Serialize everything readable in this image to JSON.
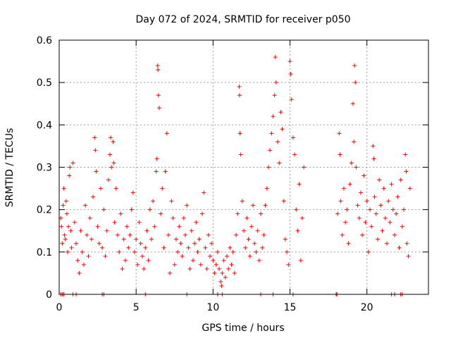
{
  "chart_data": {
    "type": "scatter",
    "title": "Day 072 of 2024, SRMTID for receiver p050",
    "xlabel": "GPS time / hours",
    "ylabel": "SRMTID / TECUs",
    "xlim": [
      0,
      24
    ],
    "ylim": [
      0,
      0.6
    ],
    "xticks": [
      0,
      5,
      10,
      15,
      20
    ],
    "xtick_labels": [
      "0",
      "5",
      "10",
      "15",
      "20"
    ],
    "yticks": [
      0,
      0.1,
      0.2,
      0.3,
      0.4,
      0.5,
      0.6
    ],
    "ytick_labels": [
      "0",
      "0.1",
      "0.2",
      "0.3",
      "0.4",
      "0.5",
      "0.6"
    ],
    "grid": true,
    "marker": "+",
    "color": "#ff0000",
    "series": [
      {
        "name": "SRMTID",
        "points": [
          [
            0.1,
            0.18
          ],
          [
            0.15,
            0.16
          ],
          [
            0.2,
            0.12
          ],
          [
            0.25,
            0.21
          ],
          [
            0.3,
            0.25
          ],
          [
            0.35,
            0.14
          ],
          [
            0.4,
            0.13
          ],
          [
            0.45,
            0.22
          ],
          [
            0.5,
            0.19
          ],
          [
            0.55,
            0.1
          ],
          [
            0.6,
            0.16
          ],
          [
            0.65,
            0.28
          ],
          [
            0.7,
            0.3
          ],
          [
            0.75,
            0.15
          ],
          [
            0.8,
            0.11
          ],
          [
            0.9,
            0.31
          ],
          [
            1.0,
            0.17
          ],
          [
            1.1,
            0.12
          ],
          [
            1.2,
            0.08
          ],
          [
            1.3,
            0.05
          ],
          [
            1.4,
            0.15
          ],
          [
            1.5,
            0.1
          ],
          [
            1.6,
            0.07
          ],
          [
            1.7,
            0.21
          ],
          [
            1.8,
            0.14
          ],
          [
            1.9,
            0.09
          ],
          [
            2.0,
            0.18
          ],
          [
            2.1,
            0.13
          ],
          [
            2.2,
            0.23
          ],
          [
            2.3,
            0.37
          ],
          [
            2.35,
            0.34
          ],
          [
            2.4,
            0.29
          ],
          [
            2.5,
            0.16
          ],
          [
            2.6,
            0.12
          ],
          [
            2.7,
            0.25
          ],
          [
            2.8,
            0.11
          ],
          [
            2.9,
            0.2
          ],
          [
            3.0,
            0.09
          ],
          [
            3.1,
            0.15
          ],
          [
            3.2,
            0.27
          ],
          [
            3.3,
            0.33
          ],
          [
            3.35,
            0.37
          ],
          [
            3.4,
            0.3
          ],
          [
            3.5,
            0.36
          ],
          [
            3.55,
            0.31
          ],
          [
            3.6,
            0.17
          ],
          [
            3.7,
            0.25
          ],
          [
            3.8,
            0.14
          ],
          [
            3.9,
            0.1
          ],
          [
            4.0,
            0.19
          ],
          [
            4.1,
            0.06
          ],
          [
            4.2,
            0.13
          ],
          [
            4.3,
            0.08
          ],
          [
            4.4,
            0.16
          ],
          [
            4.5,
            0.11
          ],
          [
            4.6,
            0.14
          ],
          [
            4.7,
            0.2
          ],
          [
            4.8,
            0.24
          ],
          [
            4.9,
            0.1
          ],
          [
            5.0,
            0.13
          ],
          [
            5.1,
            0.07
          ],
          [
            5.2,
            0.17
          ],
          [
            5.3,
            0.12
          ],
          [
            5.4,
            0.09
          ],
          [
            5.5,
            0.06
          ],
          [
            5.6,
            0.11
          ],
          [
            5.7,
            0.15
          ],
          [
            5.8,
            0.08
          ],
          [
            5.9,
            0.2
          ],
          [
            6.0,
            0.13
          ],
          [
            6.1,
            0.22
          ],
          [
            6.2,
            0.16
          ],
          [
            6.3,
            0.29
          ],
          [
            6.35,
            0.32
          ],
          [
            6.4,
            0.54
          ],
          [
            6.42,
            0.53
          ],
          [
            6.45,
            0.47
          ],
          [
            6.5,
            0.44
          ],
          [
            6.6,
            0.19
          ],
          [
            6.7,
            0.25
          ],
          [
            6.8,
            0.11
          ],
          [
            6.9,
            0.29
          ],
          [
            7.0,
            0.38
          ],
          [
            7.1,
            0.14
          ],
          [
            7.2,
            0.05
          ],
          [
            7.3,
            0.22
          ],
          [
            7.4,
            0.18
          ],
          [
            7.5,
            0.07
          ],
          [
            7.6,
            0.13
          ],
          [
            7.7,
            0.1
          ],
          [
            7.8,
            0.16
          ],
          [
            7.9,
            0.12
          ],
          [
            8.0,
            0.09
          ],
          [
            8.1,
            0.18
          ],
          [
            8.2,
            0.14
          ],
          [
            8.3,
            0.21
          ],
          [
            8.4,
            0.11
          ],
          [
            8.5,
            0.06
          ],
          [
            8.6,
            0.15
          ],
          [
            8.7,
            0.08
          ],
          [
            8.8,
            0.12
          ],
          [
            8.9,
            0.17
          ],
          [
            9.0,
            0.1
          ],
          [
            9.1,
            0.13
          ],
          [
            9.2,
            0.07
          ],
          [
            9.3,
            0.19
          ],
          [
            9.4,
            0.24
          ],
          [
            9.5,
            0.11
          ],
          [
            9.6,
            0.06
          ],
          [
            9.7,
            0.14
          ],
          [
            9.8,
            0.09
          ],
          [
            9.9,
            0.12
          ],
          [
            10.0,
            0.08
          ],
          [
            10.1,
            0.05
          ],
          [
            10.2,
            0.07
          ],
          [
            10.3,
            0.1
          ],
          [
            10.4,
            0.06
          ],
          [
            10.5,
            0.03
          ],
          [
            10.55,
            0.02
          ],
          [
            10.6,
            0.05
          ],
          [
            10.7,
            0.08
          ],
          [
            10.8,
            0.04
          ],
          [
            10.9,
            0.09
          ],
          [
            11.0,
            0.06
          ],
          [
            11.1,
            0.11
          ],
          [
            11.2,
            0.07
          ],
          [
            11.3,
            0.1
          ],
          [
            11.4,
            0.05
          ],
          [
            11.5,
            0.14
          ],
          [
            11.6,
            0.19
          ],
          [
            11.7,
            0.49
          ],
          [
            11.72,
            0.47
          ],
          [
            11.75,
            0.38
          ],
          [
            11.8,
            0.33
          ],
          [
            11.9,
            0.22
          ],
          [
            12.0,
            0.15
          ],
          [
            12.1,
            0.11
          ],
          [
            12.2,
            0.18
          ],
          [
            12.3,
            0.13
          ],
          [
            12.4,
            0.09
          ],
          [
            12.5,
            0.16
          ],
          [
            12.6,
            0.21
          ],
          [
            12.7,
            0.12
          ],
          [
            12.8,
            0.1
          ],
          [
            12.9,
            0.15
          ],
          [
            13.0,
            0.08
          ],
          [
            13.1,
            0.19
          ],
          [
            13.2,
            0.11
          ],
          [
            13.3,
            0.14
          ],
          [
            13.4,
            0.21
          ],
          [
            13.5,
            0.25
          ],
          [
            13.6,
            0.3
          ],
          [
            13.7,
            0.34
          ],
          [
            13.8,
            0.38
          ],
          [
            13.9,
            0.42
          ],
          [
            14.0,
            0.47
          ],
          [
            14.05,
            0.56
          ],
          [
            14.1,
            0.5
          ],
          [
            14.2,
            0.36
          ],
          [
            14.3,
            0.31
          ],
          [
            14.4,
            0.43
          ],
          [
            14.5,
            0.39
          ],
          [
            14.6,
            0.22
          ],
          [
            14.7,
            0.13
          ],
          [
            14.8,
            0.1
          ],
          [
            14.9,
            0.07
          ],
          [
            15.0,
            0.55
          ],
          [
            15.05,
            0.52
          ],
          [
            15.1,
            0.46
          ],
          [
            15.2,
            0.37
          ],
          [
            15.3,
            0.33
          ],
          [
            15.4,
            0.2
          ],
          [
            15.5,
            0.15
          ],
          [
            15.6,
            0.26
          ],
          [
            15.7,
            0.08
          ],
          [
            15.8,
            0.18
          ],
          [
            15.9,
            0.3
          ],
          [
            18.1,
            0.19
          ],
          [
            18.2,
            0.38
          ],
          [
            18.25,
            0.33
          ],
          [
            18.3,
            0.22
          ],
          [
            18.4,
            0.14
          ],
          [
            18.5,
            0.25
          ],
          [
            18.6,
            0.17
          ],
          [
            18.7,
            0.2
          ],
          [
            18.8,
            0.12
          ],
          [
            18.9,
            0.26
          ],
          [
            19.0,
            0.31
          ],
          [
            19.1,
            0.45
          ],
          [
            19.15,
            0.36
          ],
          [
            19.2,
            0.54
          ],
          [
            19.25,
            0.5
          ],
          [
            19.3,
            0.3
          ],
          [
            19.4,
            0.21
          ],
          [
            19.5,
            0.18
          ],
          [
            19.6,
            0.24
          ],
          [
            19.7,
            0.14
          ],
          [
            19.8,
            0.28
          ],
          [
            19.9,
            0.17
          ],
          [
            20.0,
            0.22
          ],
          [
            20.1,
            0.1
          ],
          [
            20.2,
            0.2
          ],
          [
            20.3,
            0.16
          ],
          [
            20.4,
            0.35
          ],
          [
            20.45,
            0.32
          ],
          [
            20.5,
            0.23
          ],
          [
            20.6,
            0.19
          ],
          [
            20.7,
            0.13
          ],
          [
            20.8,
            0.27
          ],
          [
            20.9,
            0.21
          ],
          [
            21.0,
            0.15
          ],
          [
            21.1,
            0.25
          ],
          [
            21.2,
            0.18
          ],
          [
            21.3,
            0.12
          ],
          [
            21.4,
            0.22
          ],
          [
            21.5,
            0.17
          ],
          [
            21.6,
            0.26
          ],
          [
            21.7,
            0.2
          ],
          [
            21.8,
            0.14
          ],
          [
            21.9,
            0.19
          ],
          [
            22.0,
            0.23
          ],
          [
            22.1,
            0.11
          ],
          [
            22.2,
            0.27
          ],
          [
            22.3,
            0.16
          ],
          [
            22.4,
            0.2
          ],
          [
            22.5,
            0.33
          ],
          [
            22.55,
            0.29
          ],
          [
            22.6,
            0.12
          ],
          [
            22.7,
            0.09
          ],
          [
            22.8,
            0.25
          ]
        ]
      }
    ],
    "zero_points_x": [
      0.1,
      0.2,
      0.3,
      0.9,
      1.1,
      2.8,
      2.9,
      5.6,
      8.3,
      10.3,
      10.6,
      13.1,
      13.9,
      15.2,
      18.0,
      18.05,
      21.6,
      21.8,
      22.2,
      22.3
    ]
  }
}
